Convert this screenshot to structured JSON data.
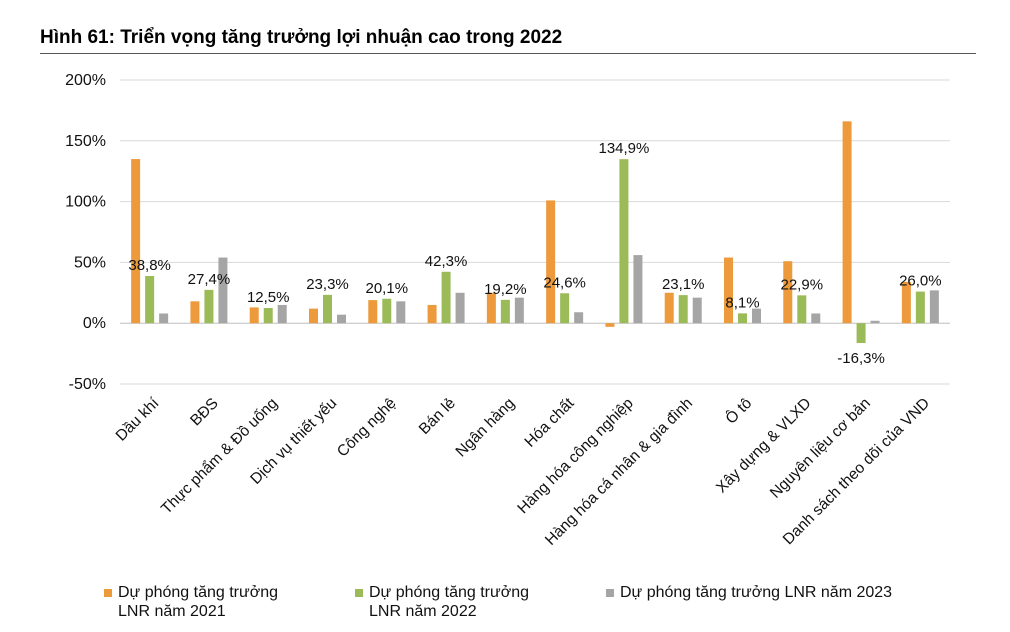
{
  "figure": {
    "title": "Hình 61: Triển vọng tăng trưởng lợi nhuận cao trong 2022"
  },
  "chart_data": {
    "type": "bar",
    "title": "Hình 61: Triển vọng tăng trưởng lợi nhuận cao trong 2022",
    "xlabel": "",
    "ylabel": "",
    "ylim": [
      -50,
      200
    ],
    "yticks": [
      -50,
      0,
      50,
      100,
      150,
      200
    ],
    "ytick_labels": [
      "-50%",
      "0%",
      "50%",
      "100%",
      "150%",
      "200%"
    ],
    "grid": true,
    "legend_position": "bottom",
    "categories": [
      "Dầu khí",
      "BĐS",
      "Thực phẩm & Đồ uống",
      "Dịch vụ thiết yếu",
      "Công nghệ",
      "Bán lẻ",
      "Ngân hàng",
      "Hóa chất",
      "Hàng hóa công nghiệp",
      "Hàng hóa cá nhân & gia đình",
      "Ô tô",
      "Xây dựng & VLXD",
      "Nguyên liệu cơ bản",
      "Danh sách theo dõi của VND"
    ],
    "series": [
      {
        "name": "Dự phóng tăng trưởng LNR năm 2021",
        "legend_lines": [
          "Dự phóng tăng trưởng",
          "LNR năm 2021"
        ],
        "color": "#ED9A3C",
        "values": [
          135,
          18,
          13,
          12,
          19,
          15,
          25,
          101,
          -3,
          25,
          54,
          51,
          166,
          34
        ]
      },
      {
        "name": "Dự phóng tăng trưởng LNR năm 2022",
        "legend_lines": [
          "Dự phóng tăng trưởng",
          "LNR năm 2022"
        ],
        "color": "#9BBB59",
        "values": [
          38.8,
          27.4,
          12.5,
          23.3,
          20.1,
          42.3,
          19.2,
          24.6,
          134.9,
          23.1,
          8.1,
          22.9,
          -16.3,
          26.0
        ],
        "labels": [
          "38,8%",
          "27,4%",
          "12,5%",
          "23,3%",
          "20,1%",
          "42,3%",
          "19,2%",
          "24,6%",
          "134,9%",
          "23,1%",
          "8,1%",
          "22,9%",
          "-16,3%",
          "26,0%"
        ]
      },
      {
        "name": "Dự phóng tăng trưởng LNR năm 2023",
        "legend_lines": [
          "Dự phóng tăng trưởng LNR năm 2023"
        ],
        "color": "#A5A5A5",
        "values": [
          8,
          54,
          15,
          7,
          18,
          25,
          21,
          9,
          56,
          21,
          12,
          8,
          2,
          27
        ]
      }
    ]
  }
}
